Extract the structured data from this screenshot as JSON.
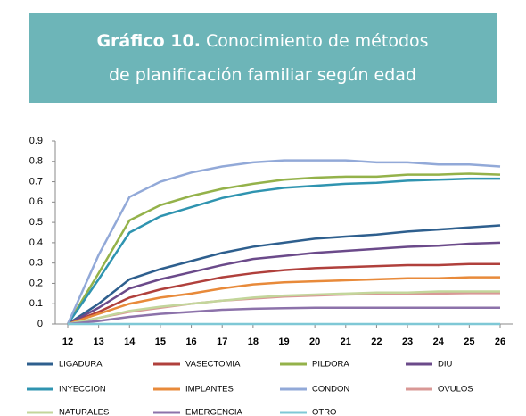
{
  "chart_data": {
    "type": "line",
    "title_label": "Gráfico 10.",
    "title": "Conocimiento de métodos de planificación familiar según edad",
    "x": [
      12,
      13,
      14,
      15,
      16,
      17,
      18,
      19,
      20,
      21,
      22,
      23,
      24,
      25,
      26
    ],
    "xlim": [
      12,
      26
    ],
    "xticks": [
      12,
      13,
      14,
      15,
      16,
      17,
      18,
      19,
      20,
      21,
      22,
      23,
      24,
      25,
      26
    ],
    "ylim": [
      0,
      0.9
    ],
    "yticks": [
      0,
      0.1,
      0.2,
      0.3,
      0.4,
      0.5,
      0.6,
      0.7,
      0.8,
      0.9
    ],
    "grid": false,
    "legend": "bottom",
    "series": [
      {
        "name": "LIGADURA",
        "color": "#2e5f8e",
        "values": [
          0,
          0.1,
          0.22,
          0.27,
          0.31,
          0.35,
          0.38,
          0.4,
          0.42,
          0.43,
          0.44,
          0.455,
          0.465,
          0.475,
          0.485
        ]
      },
      {
        "name": "VASECTOMIA",
        "color": "#b0403c",
        "values": [
          0,
          0.06,
          0.13,
          0.17,
          0.2,
          0.23,
          0.25,
          0.265,
          0.275,
          0.28,
          0.285,
          0.29,
          0.29,
          0.295,
          0.295
        ]
      },
      {
        "name": "PILDORA",
        "color": "#94b24a",
        "values": [
          0,
          0.25,
          0.51,
          0.585,
          0.63,
          0.665,
          0.69,
          0.71,
          0.72,
          0.725,
          0.725,
          0.735,
          0.735,
          0.74,
          0.735
        ]
      },
      {
        "name": "DIU",
        "color": "#6b4a8a",
        "values": [
          0,
          0.08,
          0.175,
          0.22,
          0.255,
          0.29,
          0.32,
          0.335,
          0.35,
          0.36,
          0.37,
          0.38,
          0.385,
          0.395,
          0.4
        ]
      },
      {
        "name": "INYECCION",
        "color": "#2f94b0",
        "values": [
          0,
          0.22,
          0.45,
          0.53,
          0.575,
          0.62,
          0.65,
          0.67,
          0.68,
          0.69,
          0.695,
          0.705,
          0.71,
          0.715,
          0.715
        ]
      },
      {
        "name": "IMPLANTES",
        "color": "#e88a3a",
        "values": [
          0,
          0.05,
          0.1,
          0.13,
          0.15,
          0.175,
          0.195,
          0.205,
          0.21,
          0.215,
          0.22,
          0.225,
          0.225,
          0.23,
          0.23
        ]
      },
      {
        "name": "CONDON",
        "color": "#92a9d8",
        "values": [
          0,
          0.34,
          0.625,
          0.7,
          0.745,
          0.775,
          0.795,
          0.805,
          0.805,
          0.805,
          0.795,
          0.795,
          0.785,
          0.785,
          0.775
        ]
      },
      {
        "name": "OVULOS",
        "color": "#d99896",
        "values": [
          0,
          0.03,
          0.06,
          0.08,
          0.1,
          0.115,
          0.125,
          0.135,
          0.14,
          0.145,
          0.148,
          0.15,
          0.15,
          0.152,
          0.152
        ]
      },
      {
        "name": "NATURALES",
        "color": "#c3d69b",
        "values": [
          0,
          0.03,
          0.065,
          0.085,
          0.1,
          0.115,
          0.13,
          0.14,
          0.145,
          0.15,
          0.155,
          0.155,
          0.16,
          0.16,
          0.16
        ]
      },
      {
        "name": "EMERGENCIA",
        "color": "#8c72aa",
        "values": [
          0,
          0.015,
          0.035,
          0.05,
          0.06,
          0.07,
          0.075,
          0.078,
          0.08,
          0.08,
          0.08,
          0.08,
          0.08,
          0.08,
          0.08
        ]
      },
      {
        "name": "OTRO",
        "color": "#7fc8d6",
        "values": [
          0,
          0,
          0,
          0,
          0,
          0,
          0,
          0,
          0,
          0,
          0,
          0,
          0,
          0,
          0
        ]
      }
    ]
  }
}
